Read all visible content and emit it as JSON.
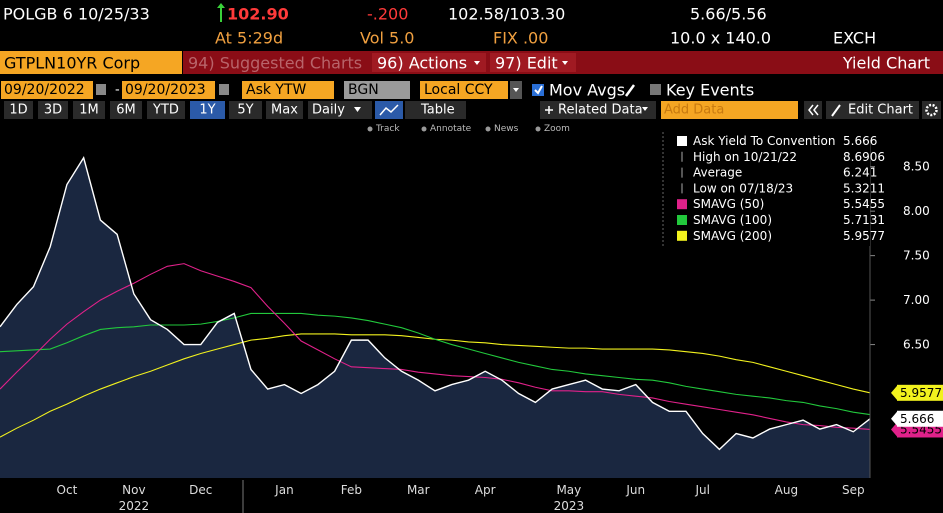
{
  "header": {
    "security": "POLGB 6 10/25/33",
    "last_price": "102.90",
    "change": "-.200",
    "bid_ask": "102.58/103.30",
    "yield_bid_ask": "5.66/5.56",
    "time": "At 5:29d",
    "volume": "Vol 5.0",
    "fix": "FIX .00",
    "size": "10.0 x 140.0",
    "exchange": "EXCH"
  },
  "menu": {
    "ticker": "GTPLN10YR Corp",
    "suggested": "94) Suggested Charts",
    "actions": "96) Actions",
    "edit": "97) Edit",
    "title": "Yield Chart"
  },
  "controls": {
    "start_date": "09/20/2022",
    "date_separator": "-",
    "end_date": "09/20/2023",
    "field": "Ask YTW",
    "source": "BGN",
    "currency": "Local CCY",
    "mov_avgs": "Mov Avgs",
    "key_events": "Key Events"
  },
  "toolbar": {
    "tabs": [
      "1D",
      "3D",
      "1M",
      "6M",
      "YTD",
      "1Y",
      "5Y",
      "Max"
    ],
    "selected_tab": 5,
    "period": "Daily",
    "table": "Table",
    "related": "Related Data",
    "add_data": "Add Data",
    "edit_chart": "Edit Chart"
  },
  "tools": [
    "Track",
    "Annotate",
    "News",
    "Zoom"
  ],
  "chart_data": {
    "type": "line",
    "categories": [
      null,
      null,
      null,
      null,
      "Oct",
      null,
      null,
      null,
      "Nov",
      null,
      null,
      null,
      "Dec",
      null,
      null,
      null,
      null,
      "Jan",
      null,
      null,
      null,
      "Feb",
      null,
      null,
      null,
      "Mar",
      null,
      null,
      null,
      "Apr",
      null,
      null,
      null,
      null,
      "May",
      null,
      null,
      null,
      "Jun",
      null,
      null,
      null,
      "Jul",
      null,
      null,
      null,
      null,
      "Aug",
      null,
      null,
      null,
      "Sep",
      null
    ],
    "year_labels": [
      "2022",
      "2023"
    ],
    "series": [
      {
        "name": "Ask Yield To Convention",
        "color": "#ffffff",
        "area_color": "#1a2740",
        "show_last": true,
        "values": [
          6.7,
          6.95,
          7.15,
          7.6,
          8.3,
          8.6,
          7.9,
          7.74,
          7.07,
          6.78,
          6.67,
          6.5,
          6.5,
          6.75,
          6.85,
          6.22,
          6.0,
          6.05,
          5.95,
          6.05,
          6.2,
          6.55,
          6.55,
          6.35,
          6.2,
          6.1,
          5.98,
          6.05,
          6.1,
          6.2,
          6.1,
          5.95,
          5.85,
          6.0,
          6.05,
          6.1,
          6.0,
          5.98,
          6.05,
          5.85,
          5.75,
          5.75,
          5.5,
          5.3211,
          5.5,
          5.45,
          5.55,
          5.6,
          5.65,
          5.55,
          5.6,
          5.52,
          5.666
        ]
      },
      {
        "name": "SMAVG (50)",
        "color": "#e0218a",
        "show_last": true,
        "values": [
          6.0,
          6.19,
          6.37,
          6.56,
          6.73,
          6.87,
          7.0,
          7.1,
          7.19,
          7.29,
          7.38,
          7.41,
          7.33,
          7.27,
          7.21,
          7.14,
          6.93,
          6.74,
          6.54,
          6.44,
          6.34,
          6.25,
          6.24,
          6.23,
          6.22,
          6.19,
          6.17,
          6.15,
          6.14,
          6.13,
          6.11,
          6.07,
          6.02,
          5.98,
          5.98,
          5.97,
          5.97,
          5.94,
          5.92,
          5.9,
          5.86,
          5.83,
          5.8,
          5.77,
          5.74,
          5.71,
          5.67,
          5.63,
          5.6,
          5.59,
          5.57,
          5.56,
          5.5455
        ]
      },
      {
        "name": "SMAVG (100)",
        "color": "#22c83c",
        "show_last": false,
        "values": [
          6.42,
          6.43,
          6.44,
          6.45,
          6.52,
          6.6,
          6.67,
          6.69,
          6.7,
          6.72,
          6.72,
          6.72,
          6.73,
          6.76,
          6.8,
          6.85,
          6.85,
          6.85,
          6.85,
          6.83,
          6.82,
          6.8,
          6.77,
          6.73,
          6.69,
          6.63,
          6.56,
          6.5,
          6.45,
          6.4,
          6.35,
          6.3,
          6.26,
          6.22,
          6.2,
          6.17,
          6.15,
          6.13,
          6.11,
          6.1,
          6.07,
          6.03,
          6.0,
          5.97,
          5.94,
          5.92,
          5.9,
          5.87,
          5.85,
          5.81,
          5.78,
          5.74,
          5.7131
        ]
      },
      {
        "name": "SMAVG (200)",
        "color": "#f2f21e",
        "show_last": true,
        "values": [
          5.46,
          5.56,
          5.65,
          5.75,
          5.83,
          5.92,
          6.0,
          6.07,
          6.14,
          6.2,
          6.27,
          6.34,
          6.4,
          6.45,
          6.5,
          6.55,
          6.57,
          6.6,
          6.62,
          6.62,
          6.62,
          6.61,
          6.61,
          6.61,
          6.6,
          6.58,
          6.56,
          6.55,
          6.53,
          6.52,
          6.5,
          6.49,
          6.48,
          6.47,
          6.46,
          6.46,
          6.45,
          6.45,
          6.45,
          6.45,
          6.44,
          6.42,
          6.4,
          6.37,
          6.33,
          6.3,
          6.25,
          6.2,
          6.15,
          6.1,
          6.05,
          6.0,
          5.9577
        ]
      }
    ],
    "stats": [
      {
        "label": "High on 10/21/22",
        "value": 8.6906
      },
      {
        "label": "Average",
        "value": 6.241
      },
      {
        "label": "Low on 07/18/23",
        "value": 5.3211
      }
    ],
    "ylim": [
      5.0,
      8.8
    ],
    "yticks": [
      {
        "value": 6.5,
        "label": "6.50"
      },
      {
        "value": 7,
        "label": "7.00"
      },
      {
        "value": 7.5,
        "label": "7.50"
      },
      {
        "value": 8,
        "label": "8.00"
      },
      {
        "value": 8.5,
        "label": "8.50"
      }
    ],
    "grid": false
  }
}
